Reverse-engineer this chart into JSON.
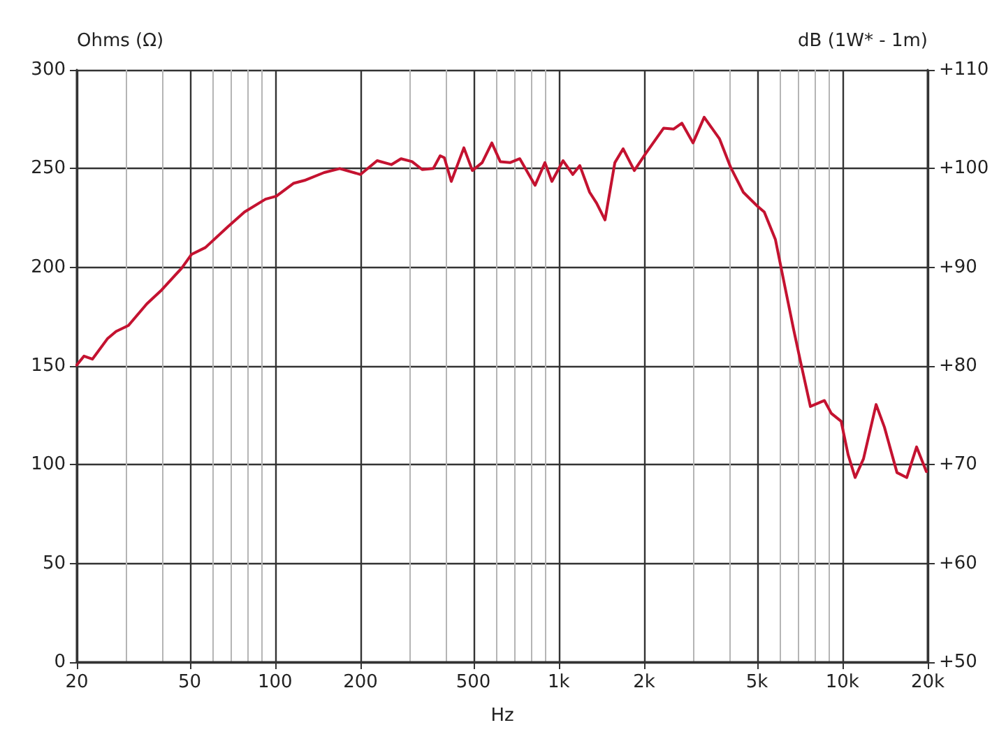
{
  "chart_data": {
    "type": "line",
    "xlabel": "Hz",
    "ylabel": "Ohms (Ω)",
    "y2label": "dB (1W* - 1m)",
    "log": "x",
    "grid": true,
    "marker": "none",
    "line_style": "solid",
    "xlim": [
      20,
      20000
    ],
    "xticks": [
      20,
      {
        "value": 30,
        "label": null
      },
      {
        "value": 40,
        "label": null
      },
      50,
      {
        "value": 60,
        "label": null
      },
      {
        "value": 70,
        "label": null
      },
      {
        "value": 80,
        "label": null
      },
      {
        "value": 90,
        "label": null
      },
      100,
      200,
      {
        "value": 300,
        "label": null
      },
      {
        "value": 400,
        "label": null
      },
      500,
      {
        "value": 600,
        "label": null
      },
      {
        "value": 700,
        "label": null
      },
      {
        "value": 800,
        "label": null
      },
      {
        "value": 900,
        "label": null
      },
      {
        "value": 1000,
        "label": "1k"
      },
      {
        "value": 2000,
        "label": "2k"
      },
      {
        "value": 3000,
        "label": null
      },
      {
        "value": 4000,
        "label": null
      },
      {
        "value": 5000,
        "label": "5k"
      },
      {
        "value": 6000,
        "label": null
      },
      {
        "value": 7000,
        "label": null
      },
      {
        "value": 8000,
        "label": null
      },
      {
        "value": 9000,
        "label": null
      },
      {
        "value": 10000,
        "label": "10k"
      },
      {
        "value": 20000,
        "label": "20k"
      }
    ],
    "ylim": [
      0,
      300
    ],
    "yticks": [
      0,
      50,
      100,
      150,
      200,
      250,
      300
    ],
    "y2lim": [
      50,
      110
    ],
    "y2ticks": [
      {
        "value": 50,
        "label": "+50"
      },
      {
        "value": 60,
        "label": "+60"
      },
      {
        "value": 70,
        "label": "+70"
      },
      {
        "value": 80,
        "label": "+80"
      },
      {
        "value": 90,
        "label": "+90"
      },
      {
        "value": 100,
        "label": "+100"
      },
      {
        "value": 110,
        "label": "+110"
      }
    ],
    "series": [
      {
        "color": "#c41230",
        "axis": "y2",
        "x": [
          20,
          21.2,
          22.7,
          25.7,
          27.5,
          30.4,
          35.3,
          39.5,
          46.8,
          50.7,
          56.8,
          68.1,
          78,
          92.5,
          101,
          116,
          127,
          149,
          169,
          200,
          229,
          257,
          278,
          304,
          330,
          361,
          382,
          395,
          418,
          463,
          496,
          537,
          581,
          622,
          673,
          729,
          825,
          894,
          946,
          1036,
          1121,
          1187,
          1285,
          1360,
          1456,
          1577,
          1687,
          1847,
          2023,
          2344,
          2538,
          2717,
          2974,
          3257,
          3690,
          4041,
          4475,
          5012,
          5304,
          5808,
          6286,
          6731,
          7125,
          7714,
          8643,
          9144,
          9899,
          10480,
          11090,
          11870,
          13150,
          14070,
          15580,
          16870,
          18270,
          19780
        ],
        "values": [
          80.1,
          81.0,
          80.7,
          82.8,
          83.5,
          84.1,
          86.3,
          87.6,
          89.9,
          91.3,
          92.0,
          94.1,
          95.6,
          96.9,
          97.2,
          98.5,
          98.8,
          99.6,
          100.0,
          99.4,
          100.8,
          100.4,
          101.0,
          100.7,
          99.9,
          100.0,
          101.3,
          101.1,
          98.7,
          102.1,
          99.8,
          100.6,
          102.6,
          100.7,
          100.6,
          101.0,
          98.3,
          100.6,
          98.7,
          100.8,
          99.4,
          100.3,
          97.6,
          96.5,
          94.8,
          100.6,
          102.0,
          99.8,
          101.5,
          104.1,
          104.0,
          104.6,
          102.6,
          105.2,
          103.0,
          100.1,
          97.6,
          96.2,
          95.6,
          92.8,
          87.9,
          83.7,
          80.4,
          75.9,
          76.5,
          75.2,
          74.4,
          71.0,
          68.7,
          70.6,
          76.1,
          73.8,
          69.2,
          68.7,
          71.8,
          69.3
        ]
      }
    ]
  }
}
